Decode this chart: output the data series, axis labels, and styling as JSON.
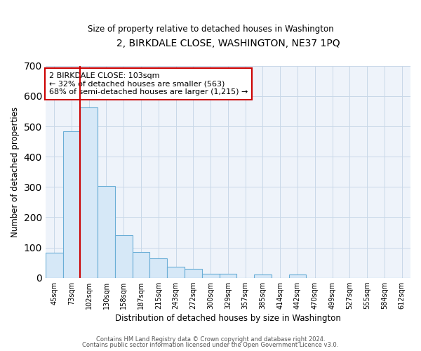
{
  "title": "2, BIRKDALE CLOSE, WASHINGTON, NE37 1PQ",
  "subtitle": "Size of property relative to detached houses in Washington",
  "xlabel": "Distribution of detached houses by size in Washington",
  "ylabel": "Number of detached properties",
  "bar_color": "#d6e8f7",
  "bar_edge_color": "#6aaed6",
  "vline_color": "#cc0000",
  "annotation_text": "2 BIRKDALE CLOSE: 103sqm\n← 32% of detached houses are smaller (563)\n68% of semi-detached houses are larger (1,215) →",
  "annotation_box_edge": "#cc0000",
  "categories": [
    "45sqm",
    "73sqm",
    "102sqm",
    "130sqm",
    "158sqm",
    "187sqm",
    "215sqm",
    "243sqm",
    "272sqm",
    "300sqm",
    "329sqm",
    "357sqm",
    "385sqm",
    "414sqm",
    "442sqm",
    "470sqm",
    "499sqm",
    "527sqm",
    "555sqm",
    "584sqm",
    "612sqm"
  ],
  "values": [
    82,
    484,
    563,
    302,
    140,
    86,
    65,
    36,
    30,
    14,
    14,
    0,
    12,
    0,
    12,
    0,
    0,
    0,
    0,
    0,
    0
  ],
  "ylim": [
    0,
    700
  ],
  "yticks": [
    0,
    100,
    200,
    300,
    400,
    500,
    600,
    700
  ],
  "footer1": "Contains HM Land Registry data © Crown copyright and database right 2024.",
  "footer2": "Contains public sector information licensed under the Open Government Licence v3.0.",
  "bg_color": "#ffffff",
  "plot_bg_color": "#eef3fa"
}
